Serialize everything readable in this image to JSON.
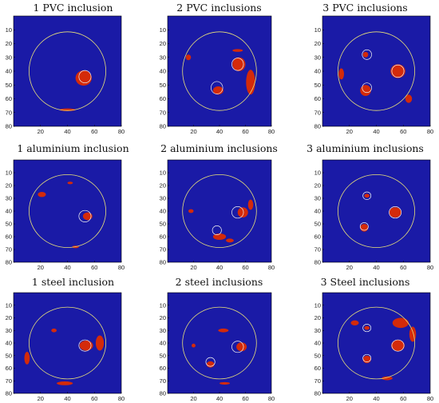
{
  "figure": {
    "axis": {
      "y_ticks": [
        "10",
        "20",
        "30",
        "40",
        "50",
        "60",
        "70",
        "80"
      ],
      "x_ticks": [
        "20",
        "40",
        "60",
        "80"
      ],
      "range": [
        0,
        80
      ],
      "background_color": "#1a1aa6",
      "inclusion_color": "#d42a0a",
      "circle_color": "#e8e07a"
    },
    "panels": [
      {
        "title": "1 PVC inclusion",
        "inclusions": [
          {
            "cx": 53,
            "cy": 44,
            "r": 4.5
          }
        ],
        "blobs": [
          {
            "cx": 52,
            "cy": 45,
            "rx": 6,
            "ry": 5.5
          },
          {
            "cx": 40,
            "cy": 68,
            "rx": 6,
            "ry": 1
          }
        ]
      },
      {
        "title": "2 PVC inclusions",
        "inclusions": [
          {
            "cx": 54,
            "cy": 35,
            "r": 4.5
          },
          {
            "cx": 38,
            "cy": 52,
            "r": 4.5
          }
        ],
        "blobs": [
          {
            "cx": 55,
            "cy": 35,
            "rx": 5,
            "ry": 5
          },
          {
            "cx": 64,
            "cy": 48,
            "rx": 3.5,
            "ry": 9
          },
          {
            "cx": 39,
            "cy": 54,
            "rx": 4,
            "ry": 3
          },
          {
            "cx": 16,
            "cy": 30,
            "rx": 2,
            "ry": 2
          },
          {
            "cx": 54,
            "cy": 25,
            "rx": 4,
            "ry": 1
          }
        ]
      },
      {
        "title": "3 PVC inclusions",
        "inclusions": [
          {
            "cx": 33,
            "cy": 28,
            "r": 3.5
          },
          {
            "cx": 56,
            "cy": 40,
            "r": 4.5
          },
          {
            "cx": 33,
            "cy": 52,
            "r": 3.5
          }
        ],
        "blobs": [
          {
            "cx": 56,
            "cy": 40,
            "rx": 5.5,
            "ry": 5
          },
          {
            "cx": 32,
            "cy": 54,
            "rx": 4,
            "ry": 4
          },
          {
            "cx": 14,
            "cy": 42,
            "rx": 2,
            "ry": 4
          },
          {
            "cx": 64,
            "cy": 60,
            "rx": 2.5,
            "ry": 3
          },
          {
            "cx": 32,
            "cy": 28,
            "rx": 2,
            "ry": 2
          }
        ]
      },
      {
        "title": "1 aluminium inclusion",
        "inclusions": [
          {
            "cx": 53,
            "cy": 44,
            "r": 4.5
          }
        ],
        "blobs": [
          {
            "cx": 55,
            "cy": 44,
            "rx": 3.5,
            "ry": 3
          },
          {
            "cx": 21,
            "cy": 27,
            "rx": 3,
            "ry": 2
          },
          {
            "cx": 42,
            "cy": 18,
            "rx": 2,
            "ry": 1
          },
          {
            "cx": 46,
            "cy": 68,
            "rx": 2.5,
            "ry": 1
          }
        ]
      },
      {
        "title": "2 aluminium inclusions",
        "inclusions": [
          {
            "cx": 54,
            "cy": 41,
            "r": 4.5
          },
          {
            "cx": 38,
            "cy": 55,
            "r": 3.5
          }
        ],
        "blobs": [
          {
            "cx": 58,
            "cy": 41,
            "rx": 4,
            "ry": 4
          },
          {
            "cx": 64,
            "cy": 35,
            "rx": 2,
            "ry": 4
          },
          {
            "cx": 40,
            "cy": 60,
            "rx": 5,
            "ry": 2.5
          },
          {
            "cx": 48,
            "cy": 63,
            "rx": 3,
            "ry": 1.5
          },
          {
            "cx": 18,
            "cy": 40,
            "rx": 2,
            "ry": 1.5
          }
        ]
      },
      {
        "title": "3 aluminium inclusions",
        "inclusions": [
          {
            "cx": 33,
            "cy": 28,
            "r": 3
          },
          {
            "cx": 54,
            "cy": 41,
            "r": 4.5
          },
          {
            "cx": 31,
            "cy": 52,
            "r": 3
          }
        ],
        "blobs": [
          {
            "cx": 54,
            "cy": 41,
            "rx": 4.5,
            "ry": 4
          },
          {
            "cx": 31,
            "cy": 53,
            "rx": 3,
            "ry": 3
          },
          {
            "cx": 33,
            "cy": 28,
            "rx": 2,
            "ry": 1.5
          }
        ]
      },
      {
        "title": "1 steel inclusion",
        "inclusions": [
          {
            "cx": 53,
            "cy": 42,
            "r": 4.5
          }
        ],
        "blobs": [
          {
            "cx": 54,
            "cy": 42,
            "rx": 5,
            "ry": 4
          },
          {
            "cx": 64,
            "cy": 40,
            "rx": 3,
            "ry": 6
          },
          {
            "cx": 10,
            "cy": 52,
            "rx": 2,
            "ry": 5
          },
          {
            "cx": 38,
            "cy": 72,
            "rx": 6,
            "ry": 1.5
          },
          {
            "cx": 30,
            "cy": 30,
            "rx": 2,
            "ry": 1.5
          }
        ]
      },
      {
        "title": "2 steel inclusions",
        "inclusions": [
          {
            "cx": 54,
            "cy": 43,
            "r": 4.5
          },
          {
            "cx": 33,
            "cy": 55,
            "r": 3.5
          }
        ],
        "blobs": [
          {
            "cx": 57,
            "cy": 43,
            "rx": 4,
            "ry": 3.5
          },
          {
            "cx": 33,
            "cy": 57,
            "rx": 3,
            "ry": 2.5
          },
          {
            "cx": 43,
            "cy": 30,
            "rx": 4,
            "ry": 1.5
          },
          {
            "cx": 44,
            "cy": 72,
            "rx": 4,
            "ry": 1
          },
          {
            "cx": 20,
            "cy": 42,
            "rx": 1.5,
            "ry": 1.5
          }
        ]
      },
      {
        "title": "3 Steel inclusions",
        "inclusions": [
          {
            "cx": 33,
            "cy": 28,
            "r": 3
          },
          {
            "cx": 56,
            "cy": 42,
            "r": 4.5
          },
          {
            "cx": 33,
            "cy": 52,
            "r": 3
          }
        ],
        "blobs": [
          {
            "cx": 56,
            "cy": 42,
            "rx": 5,
            "ry": 4.5
          },
          {
            "cx": 58,
            "cy": 24,
            "rx": 6,
            "ry": 4
          },
          {
            "cx": 67,
            "cy": 33,
            "rx": 2.5,
            "ry": 6
          },
          {
            "cx": 33,
            "cy": 53,
            "rx": 3,
            "ry": 3
          },
          {
            "cx": 24,
            "cy": 24,
            "rx": 3,
            "ry": 2
          },
          {
            "cx": 33,
            "cy": 28,
            "rx": 2,
            "ry": 1.5
          },
          {
            "cx": 48,
            "cy": 68,
            "rx": 4,
            "ry": 1.5
          }
        ]
      }
    ]
  }
}
